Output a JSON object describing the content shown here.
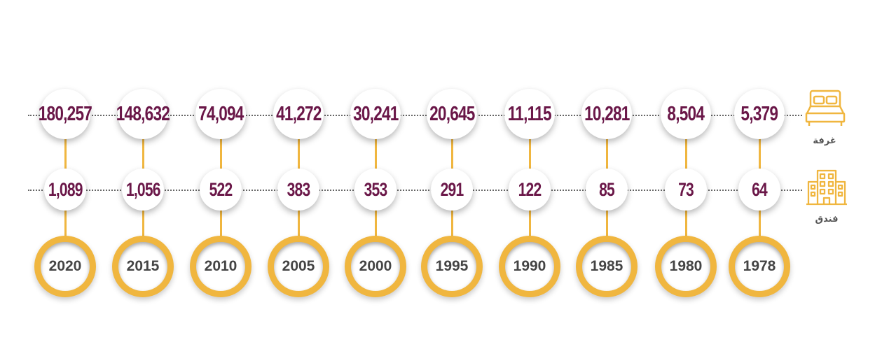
{
  "chart_data": {
    "type": "table",
    "categories": [
      "2020",
      "2015",
      "2010",
      "2005",
      "2000",
      "1995",
      "1990",
      "1985",
      "1980",
      "1978"
    ],
    "series": [
      {
        "name": "غرفة",
        "values": [
          "180,257",
          "148,632",
          "74,094",
          "41,272",
          "30,241",
          "20,645",
          "11,115",
          "10,281",
          "8,504",
          "5,379"
        ]
      },
      {
        "name": "فندق",
        "values": [
          "1,089",
          "1,056",
          "522",
          "383",
          "353",
          "291",
          "122",
          "85",
          "73",
          "64"
        ]
      }
    ],
    "icons": {
      "room": "bed-icon",
      "hotel": "hotel-building-icon"
    },
    "colors": {
      "value_text": "#6a1748",
      "accent": "#f0b63f",
      "year_text": "#444444"
    }
  }
}
